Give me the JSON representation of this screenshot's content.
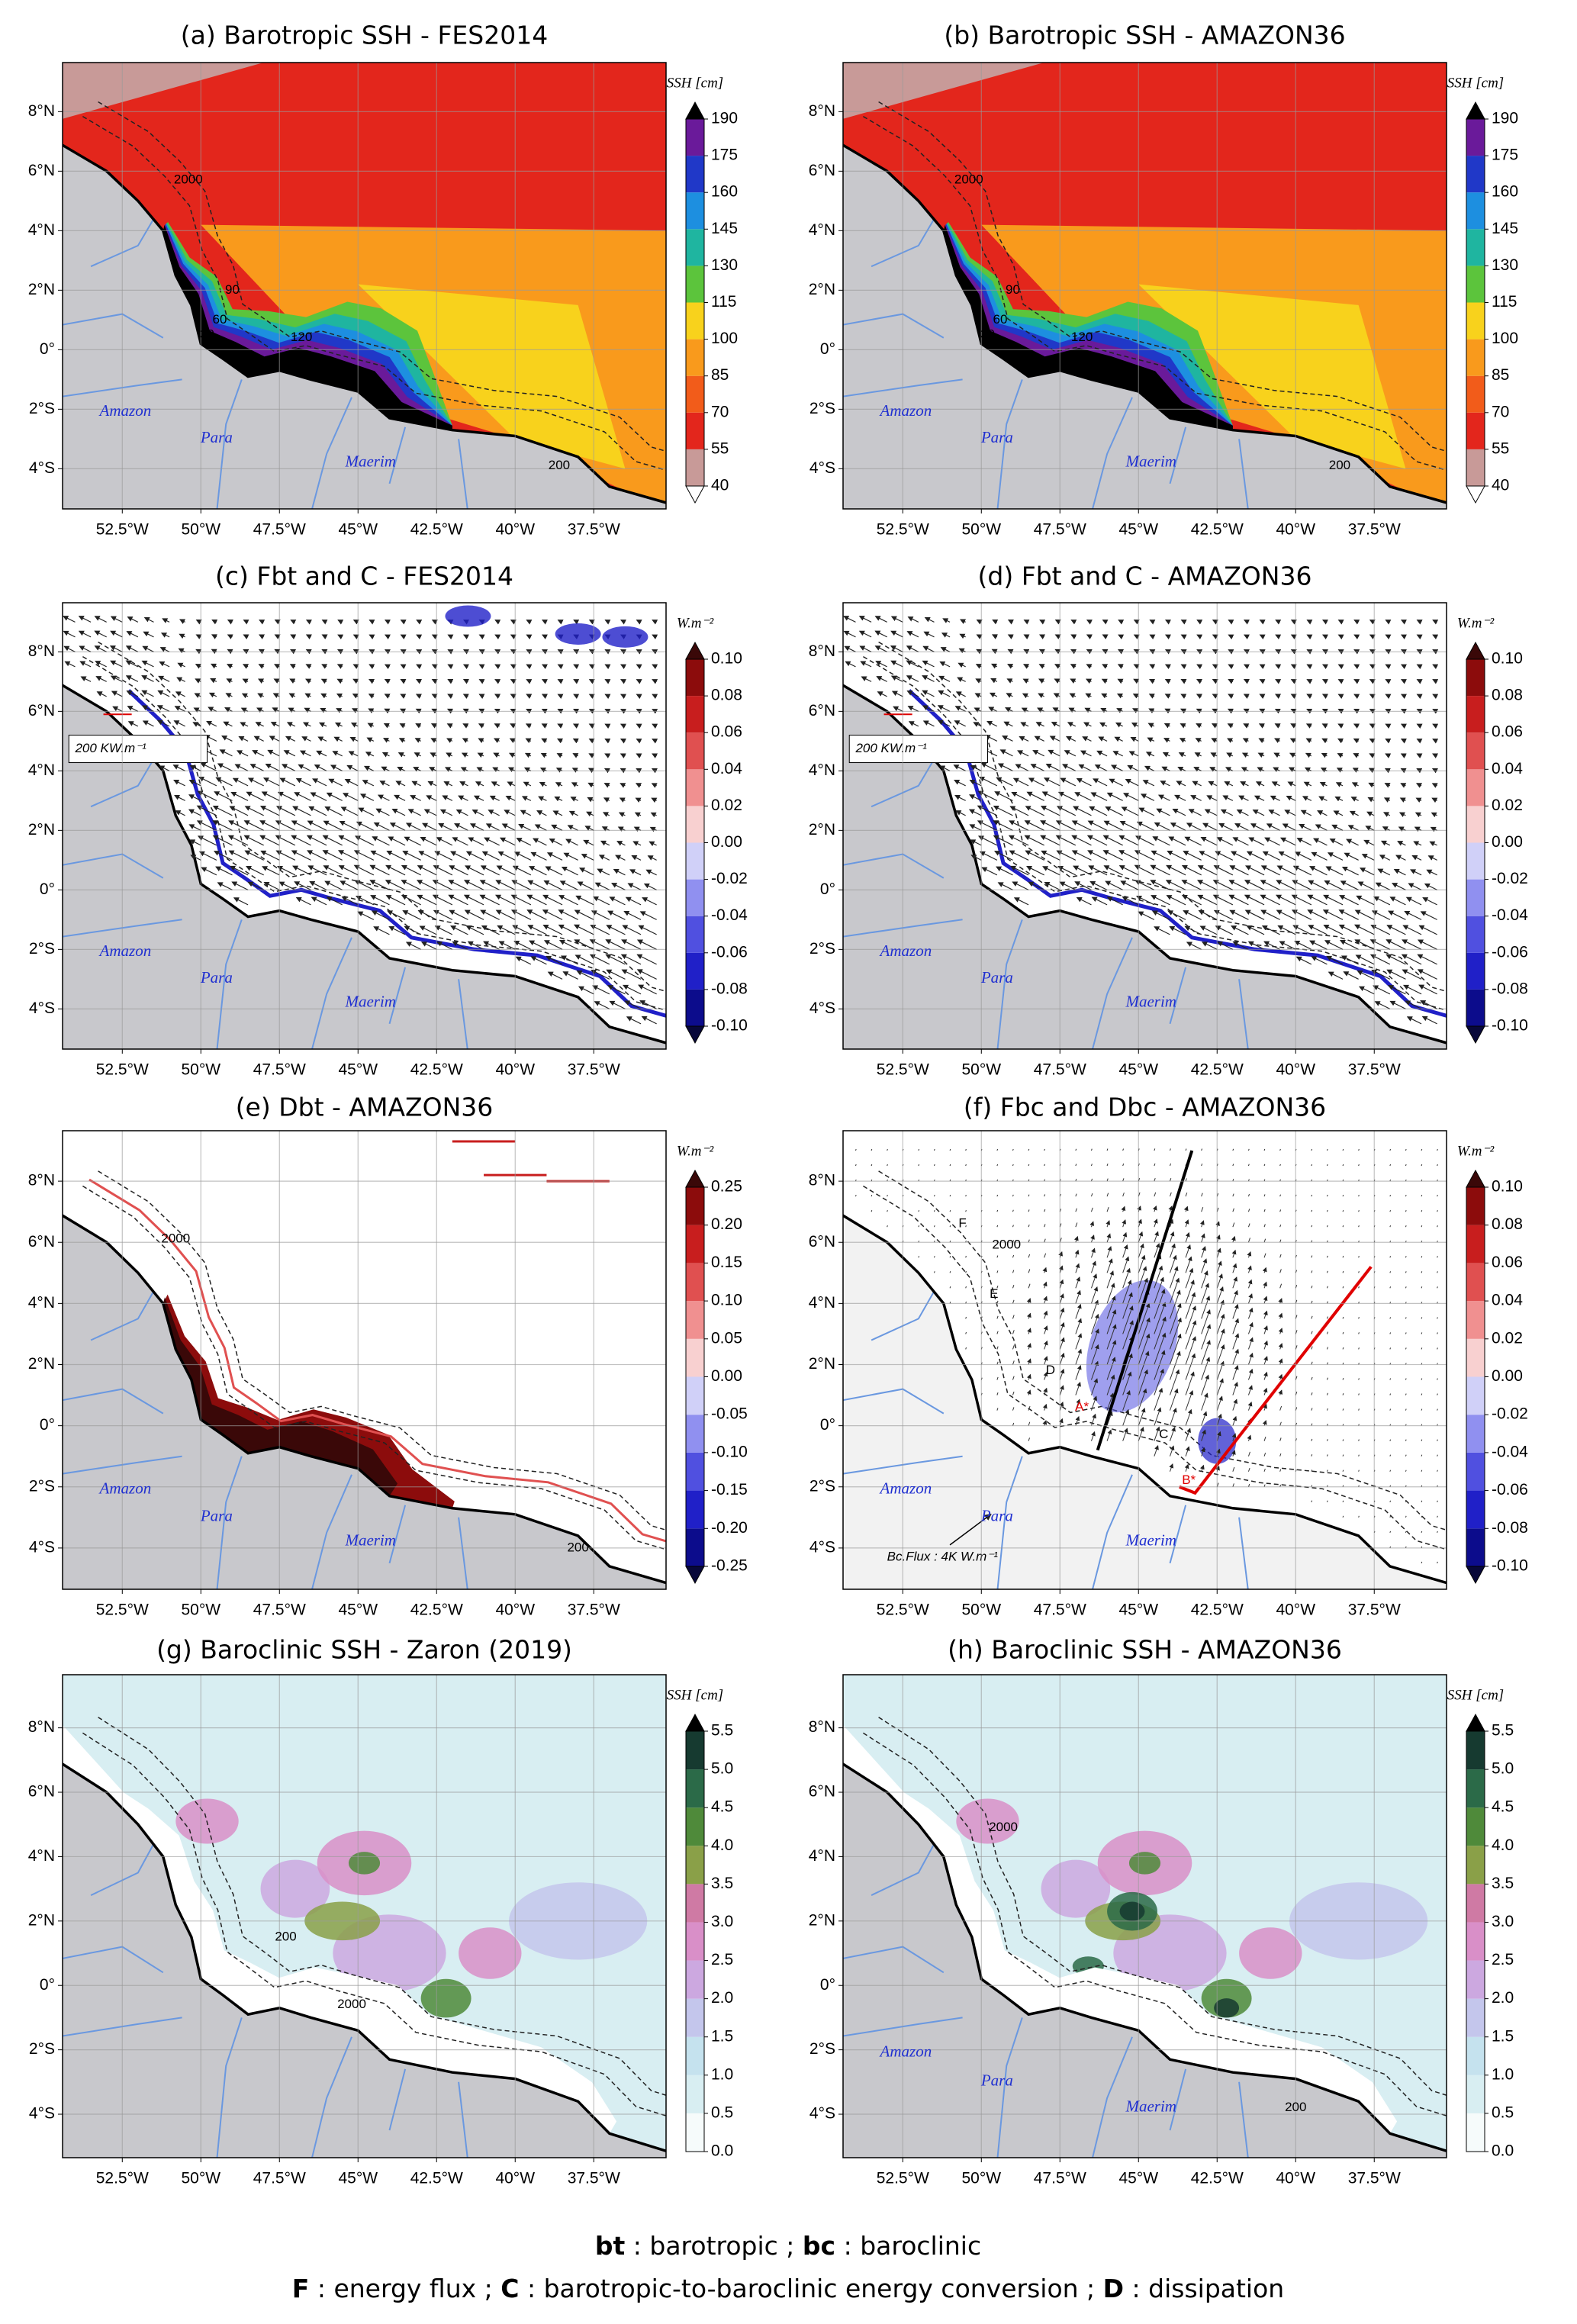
{
  "map_axes": {
    "xlim": [
      -54.4,
      -35.2
    ],
    "ylim": [
      -5.35,
      9.65
    ],
    "xticks": [
      {
        "value": -52.5,
        "label": "52.5°W"
      },
      {
        "value": -50,
        "label": "50°W"
      },
      {
        "value": -47.5,
        "label": "47.5°W"
      },
      {
        "value": -45,
        "label": "45°W"
      },
      {
        "value": -42.5,
        "label": "42.5°W"
      },
      {
        "value": -40,
        "label": "40°W"
      },
      {
        "value": -37.5,
        "label": "37.5°W"
      }
    ],
    "yticks": [
      {
        "value": -4,
        "label": "4°S"
      },
      {
        "value": -2,
        "label": "2°S"
      },
      {
        "value": 0,
        "label": "0°"
      },
      {
        "value": 2,
        "label": "2°N"
      },
      {
        "value": 4,
        "label": "4°N"
      },
      {
        "value": 6,
        "label": "6°N"
      },
      {
        "value": 8,
        "label": "8°N"
      }
    ]
  },
  "panels": [
    {
      "title": "(a) Barotropic SSH - FES2014",
      "type": "ssh-map",
      "colorbar": {
        "label": "SSH [cm]",
        "ticks": [
          40,
          55,
          70,
          85,
          100,
          115,
          130,
          145,
          160,
          175,
          190
        ],
        "colors": [
          "#c89a98",
          "#e3261c",
          "#f25c1a",
          "#f99a1c",
          "#f8d21c",
          "#5cc43c",
          "#1fb5a0",
          "#1d8fe0",
          "#2038c8",
          "#6a1a9a"
        ],
        "under": "#ffffff",
        "over": "#000000"
      },
      "places": [
        "Amazon",
        "Para",
        "Maerim"
      ],
      "labels": [
        {
          "text": "2000"
        },
        {
          "text": "90"
        },
        {
          "text": "60"
        },
        {
          "text": "30"
        },
        {
          "text": "120"
        },
        {
          "text": "200"
        }
      ]
    },
    {
      "title": "(b) Barotropic SSH - AMAZON36",
      "type": "ssh-map",
      "colorbar": {
        "label": "SSH [cm]",
        "ticks": [
          40,
          55,
          70,
          85,
          100,
          115,
          130,
          145,
          160,
          175,
          190
        ],
        "colors": [
          "#c89a98",
          "#e3261c",
          "#f25c1a",
          "#f99a1c",
          "#f8d21c",
          "#5cc43c",
          "#1fb5a0",
          "#1d8fe0",
          "#2038c8",
          "#6a1a9a"
        ],
        "under": "#ffffff",
        "over": "#000000"
      },
      "places": [
        "Amazon",
        "Para",
        "Maerim"
      ],
      "labels": [
        {
          "text": "2000"
        },
        {
          "text": "90"
        },
        {
          "text": "60"
        },
        {
          "text": "30"
        },
        {
          "text": "120"
        },
        {
          "text": "200"
        }
      ]
    },
    {
      "title": "(c) Fbt and C - FES2014",
      "type": "flux-map",
      "colorbar": {
        "label": "W.m⁻²",
        "ticks": [
          {
            "value": -0.1,
            "label": "-0.10"
          },
          {
            "value": -0.08,
            "label": "-0.08"
          },
          {
            "value": -0.06,
            "label": "-0.06"
          },
          {
            "value": -0.04,
            "label": "-0.04"
          },
          {
            "value": -0.02,
            "label": "-0.02"
          },
          {
            "value": 0,
            "label": "0.00"
          },
          {
            "value": 0.02,
            "label": "0.02"
          },
          {
            "value": 0.04,
            "label": "0.04"
          },
          {
            "value": 0.06,
            "label": "0.06"
          },
          {
            "value": 0.08,
            "label": "0.08"
          },
          {
            "value": 0.1,
            "label": "0.10"
          }
        ],
        "colors": [
          "#0c0c8c",
          "#2020c8",
          "#5050e0",
          "#9090f0",
          "#d0d0f8",
          "#f8d0d0",
          "#f09090",
          "#e05050",
          "#c81e1e",
          "#8c0c0c"
        ],
        "under": "#08083a",
        "over": "#3a0808"
      },
      "places": [
        "Amazon",
        "Para",
        "Maerim"
      ],
      "scale_label": "200 KW.m⁻¹"
    },
    {
      "title": "(d) Fbt and C - AMAZON36",
      "type": "flux-map",
      "colorbar": {
        "label": "W.m⁻²",
        "ticks": [
          {
            "value": -0.1,
            "label": "-0.10"
          },
          {
            "value": -0.08,
            "label": "-0.08"
          },
          {
            "value": -0.06,
            "label": "-0.06"
          },
          {
            "value": -0.04,
            "label": "-0.04"
          },
          {
            "value": -0.02,
            "label": "-0.02"
          },
          {
            "value": 0,
            "label": "0.00"
          },
          {
            "value": 0.02,
            "label": "0.02"
          },
          {
            "value": 0.04,
            "label": "0.04"
          },
          {
            "value": 0.06,
            "label": "0.06"
          },
          {
            "value": 0.08,
            "label": "0.08"
          },
          {
            "value": 0.1,
            "label": "0.10"
          }
        ],
        "colors": [
          "#0c0c8c",
          "#2020c8",
          "#5050e0",
          "#9090f0",
          "#d0d0f8",
          "#f8d0d0",
          "#f09090",
          "#e05050",
          "#c81e1e",
          "#8c0c0c"
        ],
        "under": "#08083a",
        "over": "#3a0808"
      },
      "places": [
        "Amazon",
        "Para",
        "Maerim"
      ],
      "scale_label": "200 KW.m⁻¹"
    },
    {
      "title": "(e) Dbt - AMAZON36",
      "type": "dissipation-map",
      "colorbar": {
        "label": "W.m⁻²",
        "ticks": [
          {
            "value": -0.25,
            "label": "-0.25"
          },
          {
            "value": -0.2,
            "label": "-0.20"
          },
          {
            "value": -0.15,
            "label": "-0.15"
          },
          {
            "value": -0.1,
            "label": "-0.10"
          },
          {
            "value": -0.05,
            "label": "-0.05"
          },
          {
            "value": 0,
            "label": "0.00"
          },
          {
            "value": 0.05,
            "label": "0.05"
          },
          {
            "value": 0.1,
            "label": "0.10"
          },
          {
            "value": 0.15,
            "label": "0.15"
          },
          {
            "value": 0.2,
            "label": "0.20"
          },
          {
            "value": 0.25,
            "label": "0.25"
          }
        ],
        "colors": [
          "#0c0c8c",
          "#2020c8",
          "#5050e0",
          "#9090f0",
          "#d0d0f8",
          "#f8d0d0",
          "#f09090",
          "#e05050",
          "#c81e1e",
          "#8c0c0c"
        ],
        "under": "#08083a",
        "over": "#3a0808"
      },
      "places": [
        "Amazon",
        "Para",
        "Maerim"
      ],
      "labels": [
        {
          "text": "2000"
        },
        {
          "text": "200"
        }
      ]
    },
    {
      "title": "(f) Fbc and Dbc - AMAZON36",
      "type": "baroclinic-flux-map",
      "colorbar": {
        "label": "W.m⁻²",
        "ticks": [
          {
            "value": -0.1,
            "label": "-0.10"
          },
          {
            "value": -0.08,
            "label": "-0.08"
          },
          {
            "value": -0.06,
            "label": "-0.06"
          },
          {
            "value": -0.04,
            "label": "-0.04"
          },
          {
            "value": -0.02,
            "label": "-0.02"
          },
          {
            "value": 0,
            "label": "0.00"
          },
          {
            "value": 0.02,
            "label": "0.02"
          },
          {
            "value": 0.04,
            "label": "0.04"
          },
          {
            "value": 0.06,
            "label": "0.06"
          },
          {
            "value": 0.08,
            "label": "0.08"
          },
          {
            "value": 0.1,
            "label": "0.10"
          }
        ],
        "colors": [
          "#0c0c8c",
          "#2020c8",
          "#5050e0",
          "#9090f0",
          "#d0d0f8",
          "#f8d0d0",
          "#f09090",
          "#e05050",
          "#c81e1e",
          "#8c0c0c"
        ],
        "under": "#08083a",
        "over": "#3a0808"
      },
      "places": [
        "Amazon",
        "Para",
        "Maerim"
      ],
      "scale_label": "Bc.Flux : 4K W.m⁻¹",
      "labels": [
        {
          "text": "2000"
        },
        {
          "text": "F"
        },
        {
          "text": "E"
        },
        {
          "text": "D"
        },
        {
          "text": "A*",
          "color": "#e00000"
        },
        {
          "text": "C"
        },
        {
          "text": "B*",
          "color": "#e00000"
        }
      ]
    },
    {
      "title": "(g) Baroclinic SSH - Zaron (2019)",
      "type": "baroclinic-ssh-map",
      "colorbar": {
        "label": "SSH [cm]",
        "ticks": [
          {
            "value": 0,
            "label": "0.0"
          },
          0.5,
          {
            "value": 1,
            "label": "1.0"
          },
          1.5,
          {
            "value": 2,
            "label": "2.0"
          },
          2.5,
          {
            "value": 3,
            "label": "3.0"
          },
          3.5,
          {
            "value": 4,
            "label": "4.0"
          },
          4.5,
          {
            "value": 5,
            "label": "5.0"
          },
          5.5
        ],
        "colors": [
          "#f6fbfb",
          "#d8eef2",
          "#c5e2ee",
          "#c4c6ec",
          "#cca8e0",
          "#d98fc8",
          "#cf7aa4",
          "#8aa048",
          "#4f8a3a",
          "#2b6a48",
          "#163a30"
        ],
        "over": "#000000"
      },
      "labels": [
        {
          "text": "200"
        },
        {
          "text": "2000"
        }
      ]
    },
    {
      "title": "(h) Baroclinic SSH - AMAZON36",
      "type": "baroclinic-ssh-map",
      "colorbar": {
        "label": "SSH [cm]",
        "ticks": [
          {
            "value": 0,
            "label": "0.0"
          },
          0.5,
          {
            "value": 1,
            "label": "1.0"
          },
          1.5,
          {
            "value": 2,
            "label": "2.0"
          },
          2.5,
          {
            "value": 3,
            "label": "3.0"
          },
          3.5,
          {
            "value": 4,
            "label": "4.0"
          },
          4.5,
          {
            "value": 5,
            "label": "5.0"
          },
          5.5
        ],
        "colors": [
          "#f6fbfb",
          "#d8eef2",
          "#c5e2ee",
          "#c4c6ec",
          "#cca8e0",
          "#d98fc8",
          "#cf7aa4",
          "#8aa048",
          "#4f8a3a",
          "#2b6a48",
          "#163a30"
        ],
        "over": "#000000"
      },
      "places": [
        "Amazon",
        "Para",
        "Maerim"
      ],
      "labels": [
        {
          "text": "2000"
        },
        {
          "text": "200"
        }
      ]
    }
  ],
  "legend": {
    "lines": [
      [
        "bt",
        " : barotropic ; ",
        "bc",
        " : baroclinic"
      ],
      [
        "F",
        " : energy flux ; ",
        "C",
        " : barotropic-to-baroclinic energy conversion ; ",
        "D",
        " : dissipation"
      ]
    ]
  }
}
